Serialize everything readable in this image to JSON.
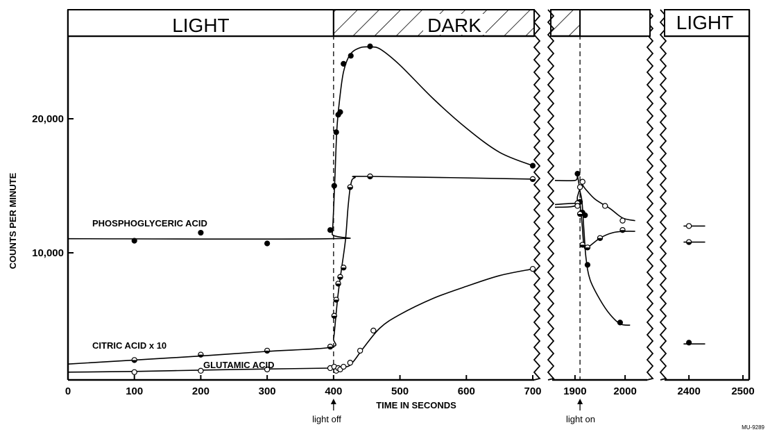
{
  "chart_data": {
    "type": "line",
    "title": "",
    "xlabel": "TIME IN SECONDS",
    "ylabel": "COUNTS PER MINUTE",
    "ylim": [
      0,
      26000
    ],
    "y_ticks": [
      {
        "value": 10000,
        "label": "10,000"
      },
      {
        "value": 20000,
        "label": "20,000"
      }
    ],
    "x_ticks": [
      {
        "value": 0,
        "label": "0"
      },
      {
        "value": 100,
        "label": "100"
      },
      {
        "value": 200,
        "label": "200"
      },
      {
        "value": 300,
        "label": "300"
      },
      {
        "value": 400,
        "label": "400"
      },
      {
        "value": 500,
        "label": "500"
      },
      {
        "value": 600,
        "label": "600"
      },
      {
        "value": 700,
        "label": "700"
      },
      {
        "value": 1900,
        "label": "1900"
      },
      {
        "value": 2000,
        "label": "2000"
      },
      {
        "value": 2400,
        "label": "2400"
      },
      {
        "value": 2500,
        "label": "2500"
      }
    ],
    "x_segments": [
      {
        "from": 0,
        "to": 700
      },
      {
        "from": 1860,
        "to": 2040
      },
      {
        "from": 2360,
        "to": 2500
      }
    ],
    "bands": [
      {
        "label": "LIGHT",
        "from": 0,
        "to": 400,
        "hatched": false
      },
      {
        "label": "DARK",
        "from": 400,
        "to": 1910,
        "hatched": true
      },
      {
        "label": "LIGHT",
        "from": 2360,
        "to": 2500,
        "hatched": false
      }
    ],
    "events": [
      {
        "x": 400,
        "label": "light off"
      },
      {
        "x": 1910,
        "label": "light on"
      }
    ],
    "figure_id": "MU-9289",
    "grid": false,
    "series": [
      {
        "name": "PHOSPHOGLYCERIC ACID",
        "marker": "filled",
        "points": [
          [
            100,
            10900
          ],
          [
            200,
            11500
          ],
          [
            300,
            10700
          ],
          [
            395,
            11700
          ],
          [
            401,
            15000
          ],
          [
            404,
            19000
          ],
          [
            407,
            20300
          ],
          [
            410,
            20500
          ],
          [
            415,
            24100
          ],
          [
            426,
            24700
          ],
          [
            455,
            25400
          ],
          [
            700,
            16500
          ],
          [
            1905,
            15900
          ],
          [
            1910,
            13800
          ],
          [
            1915,
            13000
          ],
          [
            1920,
            12800
          ],
          [
            1925,
            9100
          ],
          [
            1990,
            4800
          ],
          [
            2400,
            3300
          ]
        ],
        "curve": [
          [
            [
              0,
              11050
            ],
            [
              395,
              11050
            ],
            [
              398,
              11400
            ],
            [
              400,
              13200
            ],
            [
              402,
              15600
            ],
            [
              405,
              19200
            ],
            [
              409,
              21400
            ],
            [
              415,
              23500
            ],
            [
              425,
              24800
            ],
            [
              440,
              25300
            ],
            [
              455,
              25350
            ],
            [
              470,
              25200
            ],
            [
              500,
              24000
            ],
            [
              550,
              21500
            ],
            [
              600,
              19300
            ],
            [
              650,
              17500
            ],
            [
              700,
              16500
            ]
          ],
          [
            [
              1860,
              15400
            ],
            [
              1900,
              15400
            ],
            [
              1905,
              15700
            ],
            [
              1910,
              14600
            ],
            [
              1914,
              13800
            ],
            [
              1918,
              11600
            ],
            [
              1922,
              9600
            ],
            [
              1930,
              8000
            ],
            [
              1950,
              6500
            ],
            [
              1970,
              5400
            ],
            [
              1990,
              4700
            ],
            [
              2010,
              4600
            ]
          ],
          [
            [
              2390,
              3200
            ],
            [
              2430,
              3200
            ]
          ]
        ]
      },
      {
        "name": "CITRIC ACID x 10",
        "marker": "half",
        "points": [
          [
            100,
            2000
          ],
          [
            200,
            2400
          ],
          [
            300,
            2700
          ],
          [
            395,
            3000
          ],
          [
            401,
            5300
          ],
          [
            404,
            6500
          ],
          [
            407,
            7700
          ],
          [
            410,
            8200
          ],
          [
            415,
            8900
          ],
          [
            425,
            14900
          ],
          [
            455,
            15700
          ],
          [
            700,
            15500
          ],
          [
            1905,
            13700
          ],
          [
            1910,
            12900
          ],
          [
            1915,
            10600
          ],
          [
            1925,
            10400
          ],
          [
            1950,
            11100
          ],
          [
            1995,
            11700
          ],
          [
            2400,
            10800
          ]
        ],
        "curve": [
          [
            [
              0,
              1700
            ],
            [
              100,
              2000
            ],
            [
              200,
              2300
            ],
            [
              300,
              2650
            ],
            [
              395,
              2950
            ],
            [
              400,
              3600
            ],
            [
              403,
              5000
            ],
            [
              407,
              7000
            ],
            [
              412,
              8800
            ],
            [
              418,
              11000
            ],
            [
              422,
              13500
            ],
            [
              426,
              15100
            ],
            [
              432,
              15600
            ],
            [
              455,
              15700
            ],
            [
              700,
              15500
            ]
          ],
          [
            [
              1860,
              13600
            ],
            [
              1905,
              13700
            ],
            [
              1910,
              13600
            ],
            [
              1914,
              12200
            ],
            [
              1918,
              10500
            ],
            [
              1925,
              10400
            ],
            [
              1950,
              11100
            ],
            [
              1975,
              11500
            ],
            [
              2000,
              11600
            ],
            [
              2020,
              11600
            ]
          ],
          [
            [
              2390,
              10800
            ],
            [
              2430,
              10800
            ]
          ]
        ]
      },
      {
        "name": "GLUTAMIC ACID",
        "marker": "open",
        "points": [
          [
            100,
            1100
          ],
          [
            200,
            1200
          ],
          [
            300,
            1300
          ],
          [
            395,
            1400
          ],
          [
            401,
            1500
          ],
          [
            404,
            1200
          ],
          [
            407,
            1400
          ],
          [
            410,
            1300
          ],
          [
            415,
            1500
          ],
          [
            425,
            1800
          ],
          [
            440,
            2700
          ],
          [
            460,
            4200
          ],
          [
            700,
            8800
          ],
          [
            1905,
            13500
          ],
          [
            1910,
            14900
          ],
          [
            1915,
            15300
          ],
          [
            1960,
            13500
          ],
          [
            1995,
            12400
          ],
          [
            2400,
            12000
          ]
        ],
        "curve": [
          [
            [
              0,
              1100
            ],
            [
              100,
              1150
            ],
            [
              200,
              1250
            ],
            [
              300,
              1330
            ],
            [
              395,
              1400
            ],
            [
              420,
              1500
            ],
            [
              430,
              1900
            ],
            [
              445,
              2900
            ],
            [
              470,
              4400
            ],
            [
              500,
              5400
            ],
            [
              550,
              6600
            ],
            [
              600,
              7500
            ],
            [
              650,
              8300
            ],
            [
              700,
              8800
            ]
          ],
          [
            [
              1860,
              13400
            ],
            [
              1900,
              13500
            ],
            [
              1905,
              14200
            ],
            [
              1910,
              14800
            ],
            [
              1914,
              15100
            ],
            [
              1920,
              14800
            ],
            [
              1940,
              14000
            ],
            [
              1970,
              13300
            ],
            [
              1995,
              12600
            ],
            [
              2020,
              12400
            ]
          ],
          [
            [
              2390,
              12000
            ],
            [
              2430,
              12000
            ]
          ]
        ]
      }
    ]
  }
}
